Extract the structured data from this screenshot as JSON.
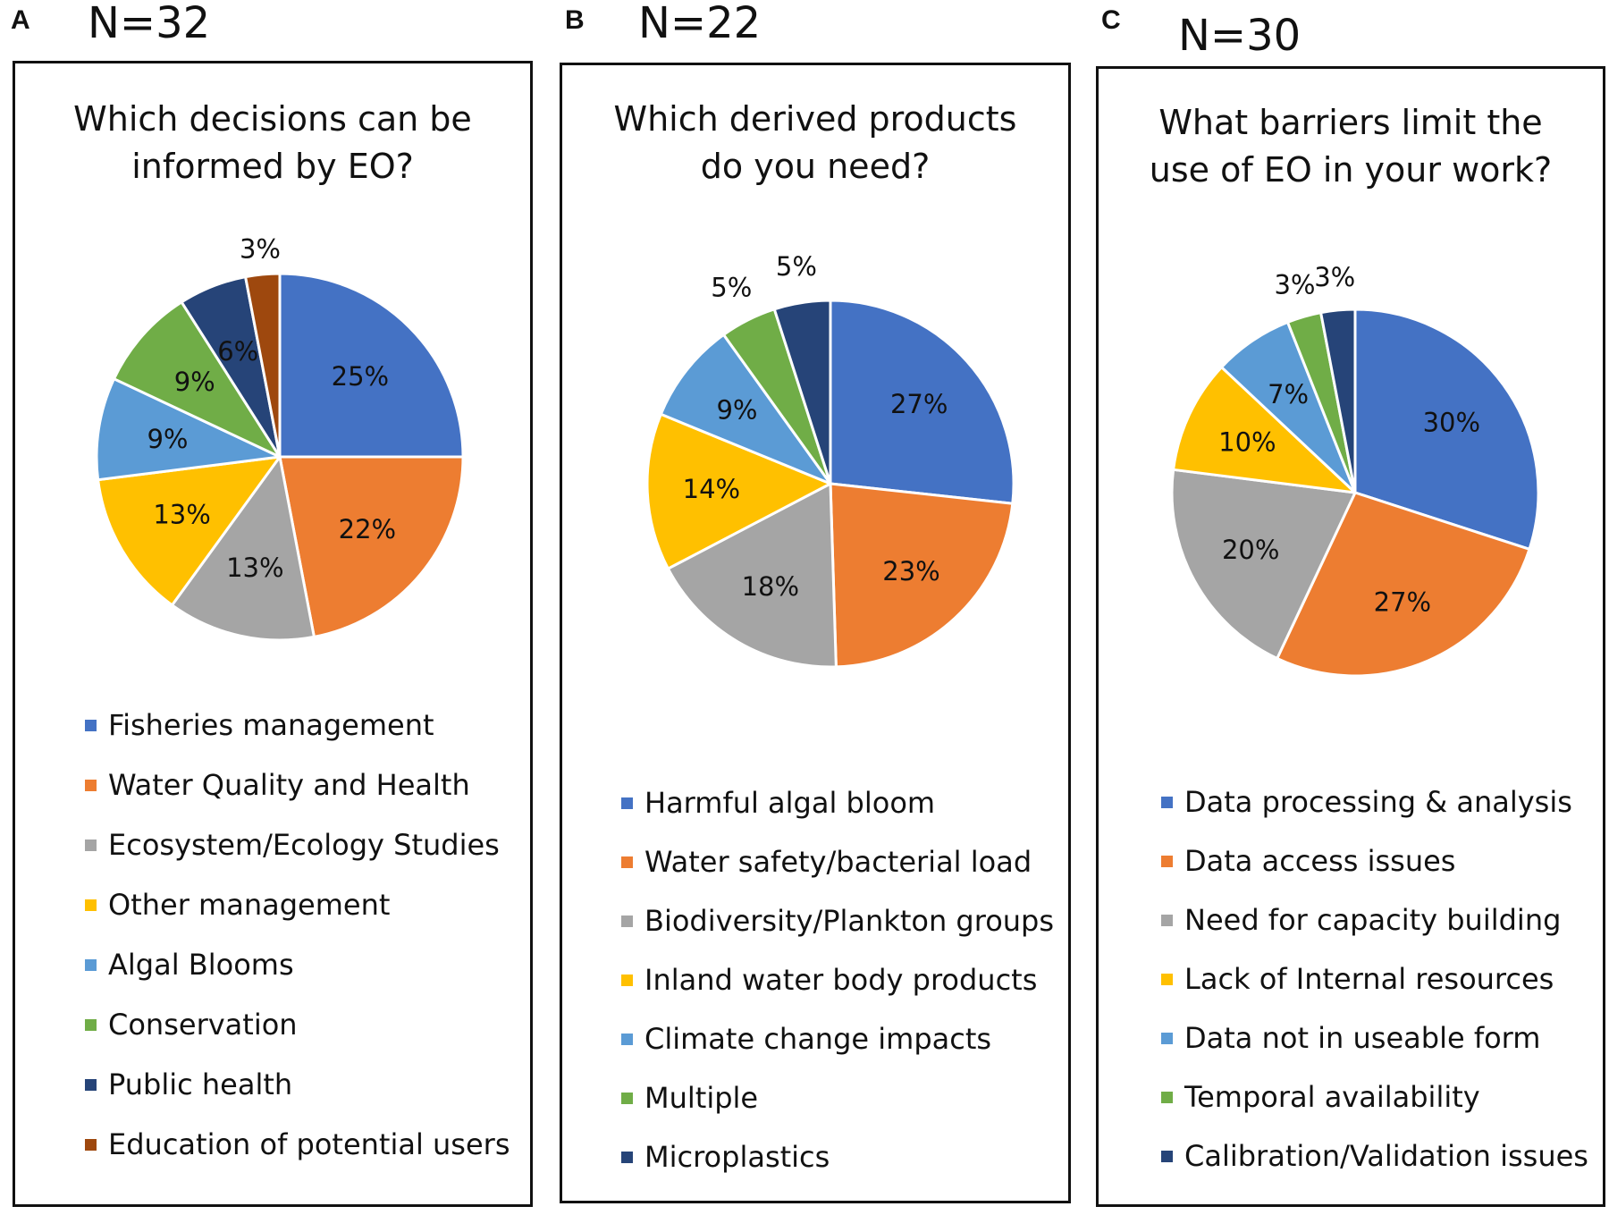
{
  "chart_data": [
    {
      "type": "pie",
      "panel_label": "A",
      "n_label": "N=32",
      "title_lines": [
        "Which decisions can be",
        "informed by EO?"
      ],
      "categories": [
        "Fisheries management",
        "Water Quality and Health",
        "Ecosystem/Ecology Studies",
        "Other management",
        "Algal Blooms",
        "Conservation",
        "Public health",
        "Education of potential users"
      ],
      "values": [
        25,
        22,
        13,
        13,
        9,
        9,
        6,
        3
      ],
      "data_labels": [
        "25%",
        "22%",
        "13%",
        "13%",
        "9%",
        "9%",
        "6%",
        "3%"
      ],
      "colors": [
        "#4472C4",
        "#ED7D31",
        "#A5A5A5",
        "#FFC000",
        "#5B9BD5",
        "#70AD47",
        "#264478",
        "#9E480E"
      ],
      "legend_position": "bottom"
    },
    {
      "type": "pie",
      "panel_label": "B",
      "n_label": "N=22",
      "title_lines": [
        "Which derived products",
        "do you need?"
      ],
      "categories": [
        "Harmful algal bloom",
        "Water safety/bacterial load",
        "Biodiversity/Plankton groups",
        "Inland water body products",
        "Climate change impacts",
        "Multiple",
        "Microplastics"
      ],
      "values": [
        27,
        23,
        18,
        14,
        9,
        5,
        5
      ],
      "data_labels": [
        "27%",
        "23%",
        "18%",
        "14%",
        "9%",
        "5%",
        "5%"
      ],
      "colors": [
        "#4472C4",
        "#ED7D31",
        "#A5A5A5",
        "#FFC000",
        "#5B9BD5",
        "#70AD47",
        "#264478"
      ],
      "legend_position": "bottom"
    },
    {
      "type": "pie",
      "panel_label": "C",
      "n_label": "N=30",
      "title_lines": [
        "What barriers limit the",
        "use of EO in your work?"
      ],
      "categories": [
        "Data processing & analysis",
        "Data access issues",
        "Need for capacity building",
        "Lack of Internal resources",
        "Data not in useable form",
        "Temporal availability",
        "Calibration/Validation issues"
      ],
      "values": [
        30,
        27,
        20,
        10,
        7,
        3,
        3
      ],
      "data_labels": [
        "30%",
        "27%",
        "20%",
        "10%",
        "7%",
        "3%",
        "3%"
      ],
      "colors": [
        "#4472C4",
        "#ED7D31",
        "#A5A5A5",
        "#FFC000",
        "#5B9BD5",
        "#70AD47",
        "#264478"
      ],
      "legend_position": "bottom"
    }
  ]
}
